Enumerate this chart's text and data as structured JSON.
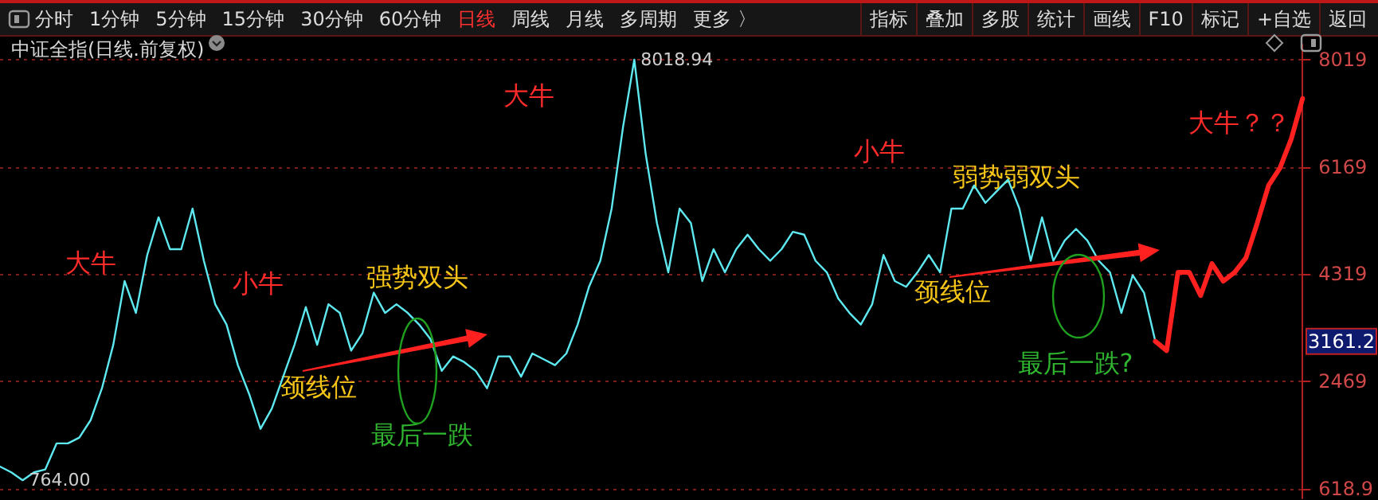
{
  "chart_data": {
    "type": "line",
    "title": "中证全指(日线.前复权)",
    "annotations": [
      "分时",
      "1分钟",
      "5分钟",
      "15分钟",
      "30分钟",
      "60分钟",
      "日线",
      "周线",
      "月线",
      "多周期",
      "更多 〉",
      "指标",
      "叠加",
      "多股",
      "统计",
      "画线",
      "F10",
      "标记",
      "+自选",
      "返回",
      "大牛",
      "小牛",
      "强势双头",
      "颈线位",
      "最后一跌",
      "大牛",
      "小牛",
      "弱势弱双头",
      "颈线位",
      "最后一跌?",
      "大牛？？",
      {
        "text": "3161.2",
        "y": 3161.2
      }
    ],
    "categories": [
      null,
      null,
      null,
      null,
      null,
      null,
      null,
      null,
      null,
      null,
      null,
      null,
      null,
      null,
      null,
      null,
      null,
      null,
      null,
      null,
      null,
      null,
      null,
      null,
      null,
      null,
      null,
      null,
      null,
      null,
      null,
      null,
      null,
      null,
      null,
      null,
      null,
      null,
      null,
      null,
      null,
      null,
      null,
      null,
      null,
      null,
      null,
      null,
      null,
      null,
      null,
      null,
      null,
      null,
      null,
      null,
      null,
      null,
      null,
      null,
      null,
      null,
      null,
      null,
      null,
      null,
      null,
      null,
      null,
      null,
      null,
      null,
      null,
      null,
      null,
      null,
      null,
      null,
      null,
      null,
      null,
      null,
      null,
      null,
      null,
      null,
      null,
      null,
      null,
      null,
      null,
      null,
      null,
      null,
      null,
      null,
      null,
      null,
      null,
      null,
      null,
      null,
      null,
      null,
      null,
      null,
      null,
      null,
      null,
      null,
      null,
      null,
      null,
      null,
      null,
      null
    ],
    "series": [
      {
        "color": "#5ee8f0",
        "values": [
          1000,
          900,
          764,
          900,
          950,
          1400,
          1400,
          1500,
          1800,
          2350,
          3100,
          4200,
          3650,
          4650,
          5300,
          4750,
          4750,
          5450,
          4550,
          3800,
          3450,
          2750,
          2250,
          1650,
          2000,
          2550,
          3100,
          3750,
          3100,
          3800,
          3650,
          3000,
          3300,
          4000,
          3650,
          3800,
          3650,
          3450,
          3200,
          2650,
          2900,
          2800,
          2650,
          2350,
          2900,
          2900,
          2550,
          2950,
          2850,
          2750,
          2950,
          3450,
          4100,
          4550,
          5450,
          6850,
          8018.94,
          6400,
          5200,
          4350,
          5450,
          5200,
          4200,
          4750,
          4350,
          4750,
          5000,
          4750,
          4550,
          4750,
          5050,
          5000,
          4550,
          4350,
          3900,
          3650,
          3450,
          3800,
          4650,
          4200,
          4100,
          4350,
          4650,
          4350,
          5450,
          5450,
          5850,
          5550,
          5750,
          5950,
          5450,
          4550,
          5300,
          4550,
          4900,
          5100,
          4900,
          4550,
          4350,
          3650,
          4300,
          4000,
          3161.2,
          null,
          null,
          null,
          null,
          null,
          null,
          null,
          null,
          null,
          null,
          null,
          null,
          null
        ],
        "value_labels": [
          null,
          null,
          "764.00",
          null,
          null,
          null,
          null,
          null,
          null,
          null,
          null,
          null,
          null,
          null,
          null,
          null,
          null,
          null,
          null,
          null,
          null,
          null,
          null,
          null,
          null,
          null,
          null,
          null,
          null,
          null,
          null,
          null,
          null,
          null,
          null,
          null,
          null,
          null,
          null,
          null,
          null,
          null,
          null,
          null,
          null,
          null,
          null,
          null,
          null,
          null,
          null,
          null,
          null,
          null,
          null,
          null,
          "8018.94",
          null,
          null,
          null,
          null,
          null,
          null,
          null,
          null,
          null,
          null,
          null,
          null,
          null,
          null,
          null,
          null,
          null,
          null,
          null,
          null,
          null,
          null,
          null,
          null,
          null,
          null,
          null,
          null,
          null,
          null,
          null,
          null,
          null,
          null,
          null,
          null,
          null,
          null,
          null,
          null,
          null,
          null,
          null,
          null,
          null,
          null,
          null,
          null,
          null,
          null,
          null,
          null,
          null,
          null,
          null,
          null,
          null,
          null,
          null
        ]
      },
      {
        "color": "#ff2020",
        "values": [
          null,
          null,
          null,
          null,
          null,
          null,
          null,
          null,
          null,
          null,
          null,
          null,
          null,
          null,
          null,
          null,
          null,
          null,
          null,
          null,
          null,
          null,
          null,
          null,
          null,
          null,
          null,
          null,
          null,
          null,
          null,
          null,
          null,
          null,
          null,
          null,
          null,
          null,
          null,
          null,
          null,
          null,
          null,
          null,
          null,
          null,
          null,
          null,
          null,
          null,
          null,
          null,
          null,
          null,
          null,
          null,
          null,
          null,
          null,
          null,
          null,
          null,
          null,
          null,
          null,
          null,
          null,
          null,
          null,
          null,
          null,
          null,
          null,
          null,
          null,
          null,
          null,
          null,
          null,
          null,
          null,
          null,
          null,
          null,
          null,
          null,
          null,
          null,
          null,
          null,
          null,
          null,
          null,
          null,
          null,
          null,
          null,
          null,
          null,
          null,
          null,
          null,
          3161.2,
          3000,
          4350,
          4350,
          3950,
          4500,
          4200,
          4350,
          4600,
          5200,
          5850,
          6150,
          6650,
          7350
        ]
      }
    ],
    "ylim": [
      450,
      8280
    ],
    "yticks": [
      618.9,
      2469,
      4319,
      6169,
      8019
    ],
    "grid": "y",
    "tick_labels": "y"
  }
}
